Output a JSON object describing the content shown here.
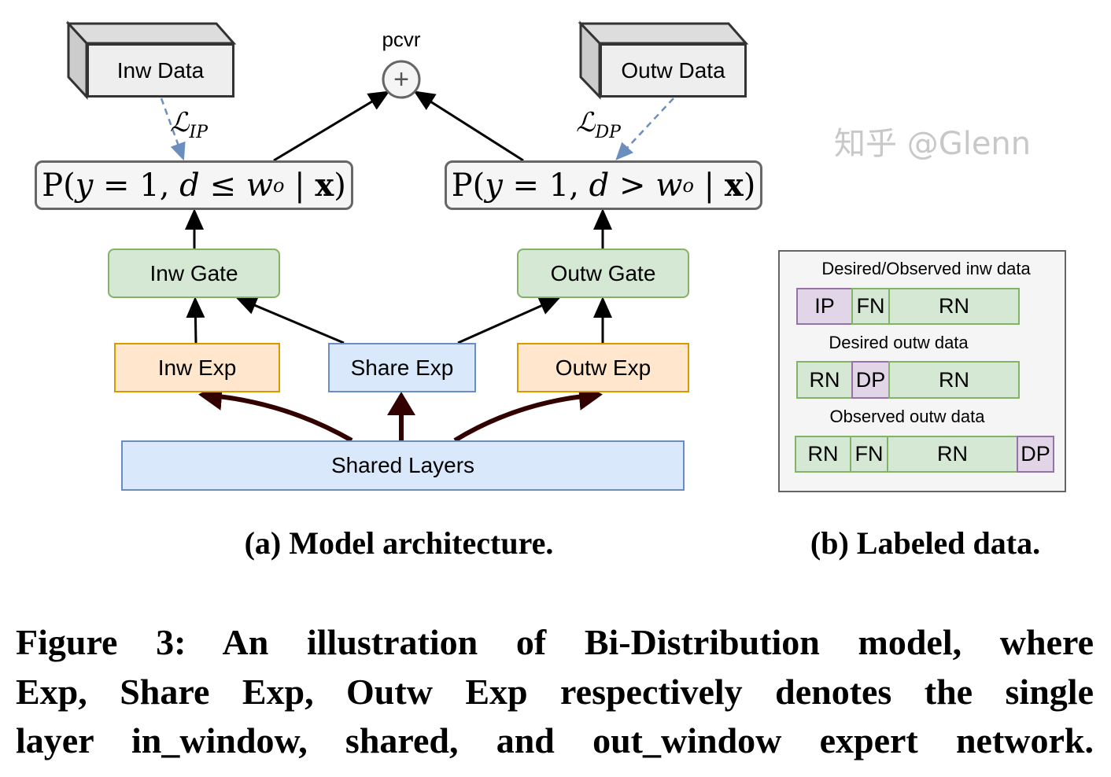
{
  "panel_a": {
    "inw_data": "Inw Data",
    "outw_data": "Outw Data",
    "output_label": "pcvr",
    "combine_symbol": "+",
    "loss_ip": {
      "symbol": "ℒ",
      "subscript": "IP"
    },
    "loss_dp": {
      "symbol": "ℒ",
      "subscript": "DP"
    },
    "prob_in": {
      "prefix": "P(",
      "y": "y",
      "mid": " = 1, ",
      "d": "d",
      "op": " ≤ ",
      "w": "w",
      "sub": "o",
      "end": " | ",
      "x": "x",
      "close": ")"
    },
    "prob_out": {
      "prefix": "P(",
      "y": "y",
      "mid": " = 1, ",
      "d": "d",
      "op": " > ",
      "w": "w",
      "sub": "o",
      "end": " | ",
      "x": "x",
      "close": ")"
    },
    "inw_gate": "Inw Gate",
    "outw_gate": "Outw Gate",
    "inw_exp": "Inw Exp",
    "share_exp": "Share Exp",
    "outw_exp": "Outw Exp",
    "shared_layers": "Shared Layers",
    "caption": "(a) Model architecture."
  },
  "panel_b": {
    "rows": [
      {
        "title": "Desired/Observed inw data",
        "cells": [
          "IP",
          "FN",
          "RN"
        ]
      },
      {
        "title": "Desired outw data",
        "cells": [
          "RN",
          "DP",
          "RN"
        ]
      },
      {
        "title": "Observed outw data",
        "cells": [
          "RN",
          "FN",
          "RN",
          "DP"
        ]
      }
    ],
    "caption": "(b) Labeled data."
  },
  "figure_caption": {
    "lines": [
      "Figure 3: An illustration of Bi-Distribution model, where",
      "Exp, Share Exp, Outw Exp respectively denotes the single",
      "layer in_window, shared, and out_window expert network."
    ]
  },
  "watermark": "知乎 @Glenn",
  "colors": {
    "gate": "#d5e8d4",
    "expert": "#ffe6cc",
    "shared": "#dae8fc",
    "positive": "#e1d5e7",
    "negative": "#d5e8d4",
    "loss_arrow": "#6c8ebf",
    "shared_arrow": "#330000"
  }
}
